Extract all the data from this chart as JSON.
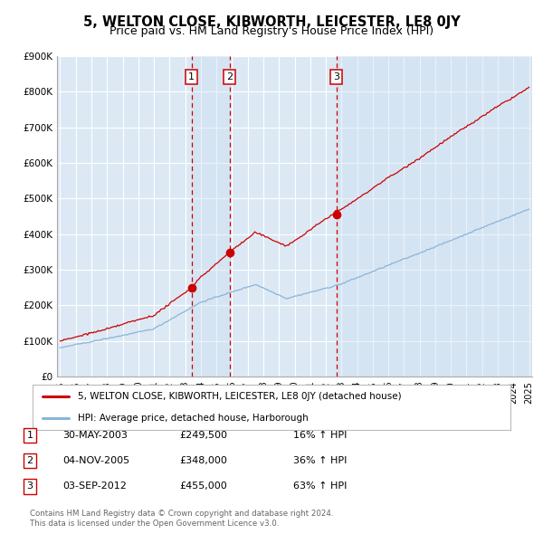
{
  "title": "5, WELTON CLOSE, KIBWORTH, LEICESTER, LE8 0JY",
  "subtitle": "Price paid vs. HM Land Registry's House Price Index (HPI)",
  "background_color": "#ffffff",
  "plot_bg_color": "#dce9f5",
  "grid_color": "#ffffff",
  "red_line_color": "#cc0000",
  "blue_line_color": "#8ab4d8",
  "sale_marker_color": "#cc0000",
  "dashed_line_color": "#cc0000",
  "ylim": [
    0,
    900000
  ],
  "yticks": [
    0,
    100000,
    200000,
    300000,
    400000,
    500000,
    600000,
    700000,
    800000,
    900000
  ],
  "ytick_labels": [
    "£0",
    "£100K",
    "£200K",
    "£300K",
    "£400K",
    "£500K",
    "£600K",
    "£700K",
    "£800K",
    "£900K"
  ],
  "xmin_year": 1995,
  "xmax_year": 2025,
  "xtick_years": [
    1995,
    1996,
    1997,
    1998,
    1999,
    2000,
    2001,
    2002,
    2003,
    2004,
    2005,
    2006,
    2007,
    2008,
    2009,
    2010,
    2011,
    2012,
    2013,
    2014,
    2015,
    2016,
    2017,
    2018,
    2019,
    2020,
    2021,
    2022,
    2023,
    2024,
    2025
  ],
  "sale1_year": 2003.41,
  "sale1_price": 249500,
  "sale1_label": "1",
  "sale2_year": 2005.84,
  "sale2_price": 348000,
  "sale2_label": "2",
  "sale3_year": 2012.67,
  "sale3_price": 455000,
  "sale3_label": "3",
  "legend_red": "5, WELTON CLOSE, KIBWORTH, LEICESTER, LE8 0JY (detached house)",
  "legend_blue": "HPI: Average price, detached house, Harborough",
  "table_rows": [
    [
      "1",
      "30-MAY-2003",
      "£249,500",
      "16% ↑ HPI"
    ],
    [
      "2",
      "04-NOV-2005",
      "£348,000",
      "36% ↑ HPI"
    ],
    [
      "3",
      "03-SEP-2012",
      "£455,000",
      "63% ↑ HPI"
    ]
  ],
  "footer1": "Contains HM Land Registry data © Crown copyright and database right 2024.",
  "footer2": "This data is licensed under the Open Government Licence v3.0."
}
